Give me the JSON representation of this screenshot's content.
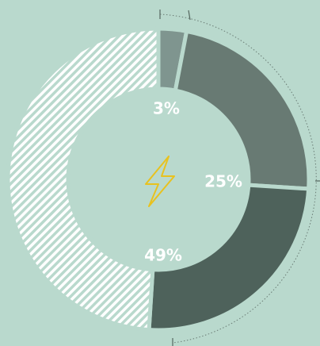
{
  "chart_data": {
    "type": "donut",
    "values": [
      3,
      23,
      25,
      49
    ],
    "value_labels": [
      "3%",
      null,
      "25%",
      "49%"
    ],
    "colors": [
      "#7f958f",
      "#687a73",
      "#4e625b",
      "hatch"
    ]
  }
}
